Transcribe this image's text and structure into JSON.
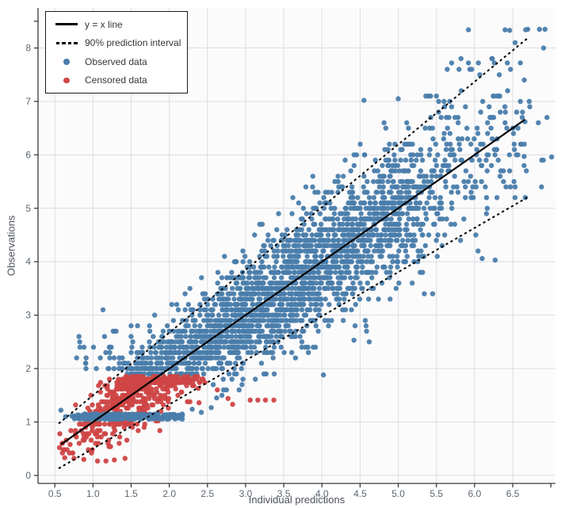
{
  "chart_data": {
    "type": "scatter",
    "title": "",
    "xlabel": "Individual predictions",
    "ylabel": "Observations",
    "axes": {
      "x": {
        "label": "Individual predictions",
        "lim": [
          0.28,
          7.06
        ],
        "tick_values": [
          0.5,
          1.0,
          1.5,
          2.0,
          2.5,
          3.0,
          3.5,
          4.0,
          4.5,
          5.0,
          5.5,
          6.0,
          6.5
        ],
        "tick_labels": [
          "0.5",
          "1.0",
          "1.5",
          "2.0",
          "2.5",
          "3.0",
          "3.5",
          "4.0",
          "4.5",
          "5.0",
          "5.5",
          "6.0",
          "6.5"
        ],
        "unlabeled_tick_values": [
          7.0
        ]
      },
      "y": {
        "label": "Observations",
        "lim": [
          -0.15,
          8.75
        ],
        "tick_values": [
          0,
          1,
          2,
          3,
          4,
          5,
          6,
          7,
          8
        ],
        "tick_labels": [
          "0",
          "1",
          "2",
          "3",
          "4",
          "5",
          "6",
          "7",
          "8"
        ],
        "unlabeled_tick_values": [
          8.5
        ]
      }
    },
    "grid": true,
    "legend": {
      "position": "top-left",
      "items": [
        {
          "label": "y = x line",
          "glyph": "solid-line",
          "color": "#000000"
        },
        {
          "label": "90% prediction interval",
          "glyph": "dotted-line",
          "color": "#000000"
        },
        {
          "label": "Observed data",
          "glyph": "dot",
          "color": "#4A7DAB"
        },
        {
          "label": "Censored data",
          "glyph": "dot",
          "color": "#CF4545"
        }
      ]
    },
    "lines": [
      {
        "id": "identity",
        "legend_label": "y = x line",
        "style": "solid",
        "color": "#000000",
        "width": 2.2,
        "x1": 0.58,
        "y1": 0.58,
        "x2": 6.66,
        "y2": 6.66
      },
      {
        "id": "pi-upper",
        "legend_label": "90% prediction interval",
        "style": "dotted",
        "color": "#000000",
        "width": 2,
        "x1": 0.55,
        "y1": 0.97,
        "x2": 6.7,
        "y2": 8.19
      },
      {
        "id": "pi-lower",
        "legend_label": "90% prediction interval",
        "style": "dotted",
        "color": "#000000",
        "width": 2,
        "x1": 0.55,
        "y1": 0.13,
        "x2": 6.7,
        "y2": 5.21
      }
    ],
    "series": [
      {
        "name": "Observed data",
        "color": "#4A7DAB",
        "generation": {
          "n": 2600,
          "x_mean": 3.55,
          "x_sd": 1.32,
          "x_min": 0.78,
          "x_max": 6.95,
          "sigma_base": 0.2,
          "sigma_slope": 0.105,
          "z_clamp": 2.75,
          "y_quant": 0.1,
          "y_min": 0.5,
          "y_max": 8.35,
          "censor_zone": {
            "x_max": 2.55,
            "y_max": 1.86,
            "band_x_max": 2.2,
            "band_prob": 0.58,
            "band_y": 1.05,
            "band_height": 0.1,
            "push_y": 1.92,
            "push_scale": 0.38
          }
        },
        "lloq_band": {
          "n": 175,
          "x_mean": 1.4,
          "x_sd": 0.4,
          "x_min": 0.7,
          "x_max": 2.2,
          "y": 1.05,
          "height": 0.1
        },
        "extra_points": [
          [
            5.92,
            8.34
          ],
          [
            6.4,
            8.34
          ],
          [
            6.46,
            8.33
          ],
          [
            6.67,
            8.34
          ],
          [
            5.7,
            7.72
          ],
          [
            5.92,
            7.72
          ],
          [
            6.05,
            7.72
          ],
          [
            6.26,
            7.72
          ],
          [
            6.43,
            7.72
          ],
          [
            6.6,
            7.72
          ],
          [
            4.55,
            7.02
          ],
          [
            5.0,
            7.05
          ],
          [
            5.6,
            7.0
          ],
          [
            6.6,
            7.0
          ],
          [
            6.4,
            6.6
          ],
          [
            6.51,
            6.4
          ],
          [
            6.66,
            6.62
          ],
          [
            6.65,
            5.97
          ],
          [
            7.01,
            5.96
          ],
          [
            6.88,
            5.9
          ],
          [
            6.1,
            4.06
          ],
          [
            6.27,
            4.03
          ],
          [
            4.42,
            2.53
          ],
          [
            4.62,
            2.5
          ],
          [
            4.02,
            1.88
          ],
          [
            2.3,
            1.24
          ],
          [
            2.42,
            1.18
          ],
          [
            2.55,
            1.27
          ],
          [
            2.62,
            1.45
          ],
          [
            0.58,
            1.22
          ],
          [
            0.64,
            1.1
          ]
        ]
      },
      {
        "name": "Censored data",
        "color": "#CF4545",
        "generation": {
          "n": 560,
          "x_mean": 1.6,
          "x_sd": 0.42,
          "x_min": 0.56,
          "x_max": 2.52,
          "sigma_base": 0.2,
          "sigma_slope": 0.105,
          "z_clamp": 2.75,
          "top": 1.84,
          "top_pile": 0.06,
          "bottom": 0.38,
          "bottom_pile": 0.12,
          "y_quant": 0.06,
          "y_min": 0.26,
          "y_max": 1.85
        },
        "extra_points": [
          [
            2.27,
            1.38
          ],
          [
            2.38,
            1.63
          ],
          [
            2.39,
            1.36
          ],
          [
            2.63,
            1.6
          ],
          [
            2.77,
            1.44
          ],
          [
            2.83,
            1.33
          ],
          [
            3.06,
            1.41
          ],
          [
            3.16,
            1.41
          ],
          [
            3.26,
            1.41
          ],
          [
            3.37,
            1.41
          ],
          [
            0.63,
            0.33
          ],
          [
            0.75,
            0.32
          ],
          [
            0.88,
            0.3
          ],
          [
            1.06,
            0.27
          ],
          [
            1.17,
            0.27
          ],
          [
            1.28,
            0.29
          ],
          [
            1.42,
            0.32
          ],
          [
            0.56,
            0.52
          ],
          [
            0.6,
            0.6
          ],
          [
            0.65,
            0.66
          ],
          [
            0.7,
            0.58
          ]
        ]
      }
    ],
    "style": {
      "plot_bg": "#fbfbfc",
      "grid_color": "#dcdde1",
      "axis_line_color": "#3a3a3a",
      "tick_text_color": "#5c6670",
      "axis_title_color": "#4d5259",
      "legend_border_color": "#1a1a1a",
      "legend_bg": "#ffffff",
      "legend_text_color": "#33373c",
      "point_radius": 3.2,
      "point_opacity": 0.95,
      "seed": 42
    }
  }
}
